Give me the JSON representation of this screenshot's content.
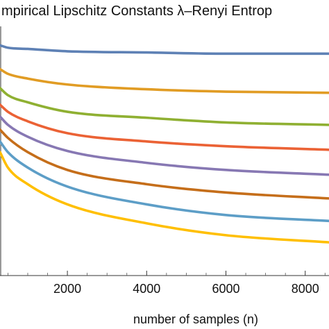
{
  "chart_data": {
    "type": "line",
    "title": "mpirical Lipschitz Constants λ–Renyi Entrop",
    "xlabel": "number of samples (n)",
    "ylabel": "",
    "xlim": [
      300,
      8600
    ],
    "ylim": [
      0.0,
      1.05
    ],
    "x_ticks": [
      2000,
      4000,
      6000,
      8000
    ],
    "x_tick_labels": [
      "2000",
      "4000",
      "6000",
      "8000"
    ],
    "grid": false,
    "legend": "none",
    "series": [
      {
        "color": "#5E81B5",
        "x": [
          300,
          500,
          1000,
          2000,
          4000,
          6000,
          8600
        ],
        "y": [
          0.97,
          0.96,
          0.955,
          0.945,
          0.94,
          0.935,
          0.935
        ]
      },
      {
        "color": "#E19C24",
        "x": [
          300,
          500,
          1000,
          2000,
          4000,
          6000,
          8600
        ],
        "y": [
          0.87,
          0.85,
          0.83,
          0.805,
          0.785,
          0.775,
          0.77
        ]
      },
      {
        "color": "#8FB032",
        "x": [
          300,
          500,
          1000,
          2000,
          4000,
          6000,
          8600
        ],
        "y": [
          0.79,
          0.76,
          0.73,
          0.69,
          0.665,
          0.645,
          0.635
        ]
      },
      {
        "color": "#EB6235",
        "x": [
          300,
          500,
          1000,
          2000,
          4000,
          6000,
          8600
        ],
        "y": [
          0.72,
          0.69,
          0.65,
          0.6,
          0.565,
          0.545,
          0.53
        ]
      },
      {
        "color": "#8778B3",
        "x": [
          300,
          500,
          1000,
          2000,
          4000,
          6000,
          8600
        ],
        "y": [
          0.67,
          0.635,
          0.585,
          0.525,
          0.475,
          0.445,
          0.425
        ]
      },
      {
        "color": "#C56E1A",
        "x": [
          300,
          500,
          1000,
          2000,
          4000,
          6000,
          8600
        ],
        "y": [
          0.615,
          0.58,
          0.52,
          0.445,
          0.385,
          0.35,
          0.325
        ]
      },
      {
        "color": "#5D9EC7",
        "x": [
          300,
          500,
          1000,
          2000,
          4000,
          6000,
          8600
        ],
        "y": [
          0.565,
          0.52,
          0.455,
          0.375,
          0.3,
          0.255,
          0.23
        ]
      },
      {
        "color": "#FFBF00",
        "x": [
          300,
          500,
          1000,
          2000,
          4000,
          6000,
          8600
        ],
        "y": [
          0.52,
          0.455,
          0.385,
          0.3,
          0.22,
          0.17,
          0.14
        ]
      }
    ]
  }
}
